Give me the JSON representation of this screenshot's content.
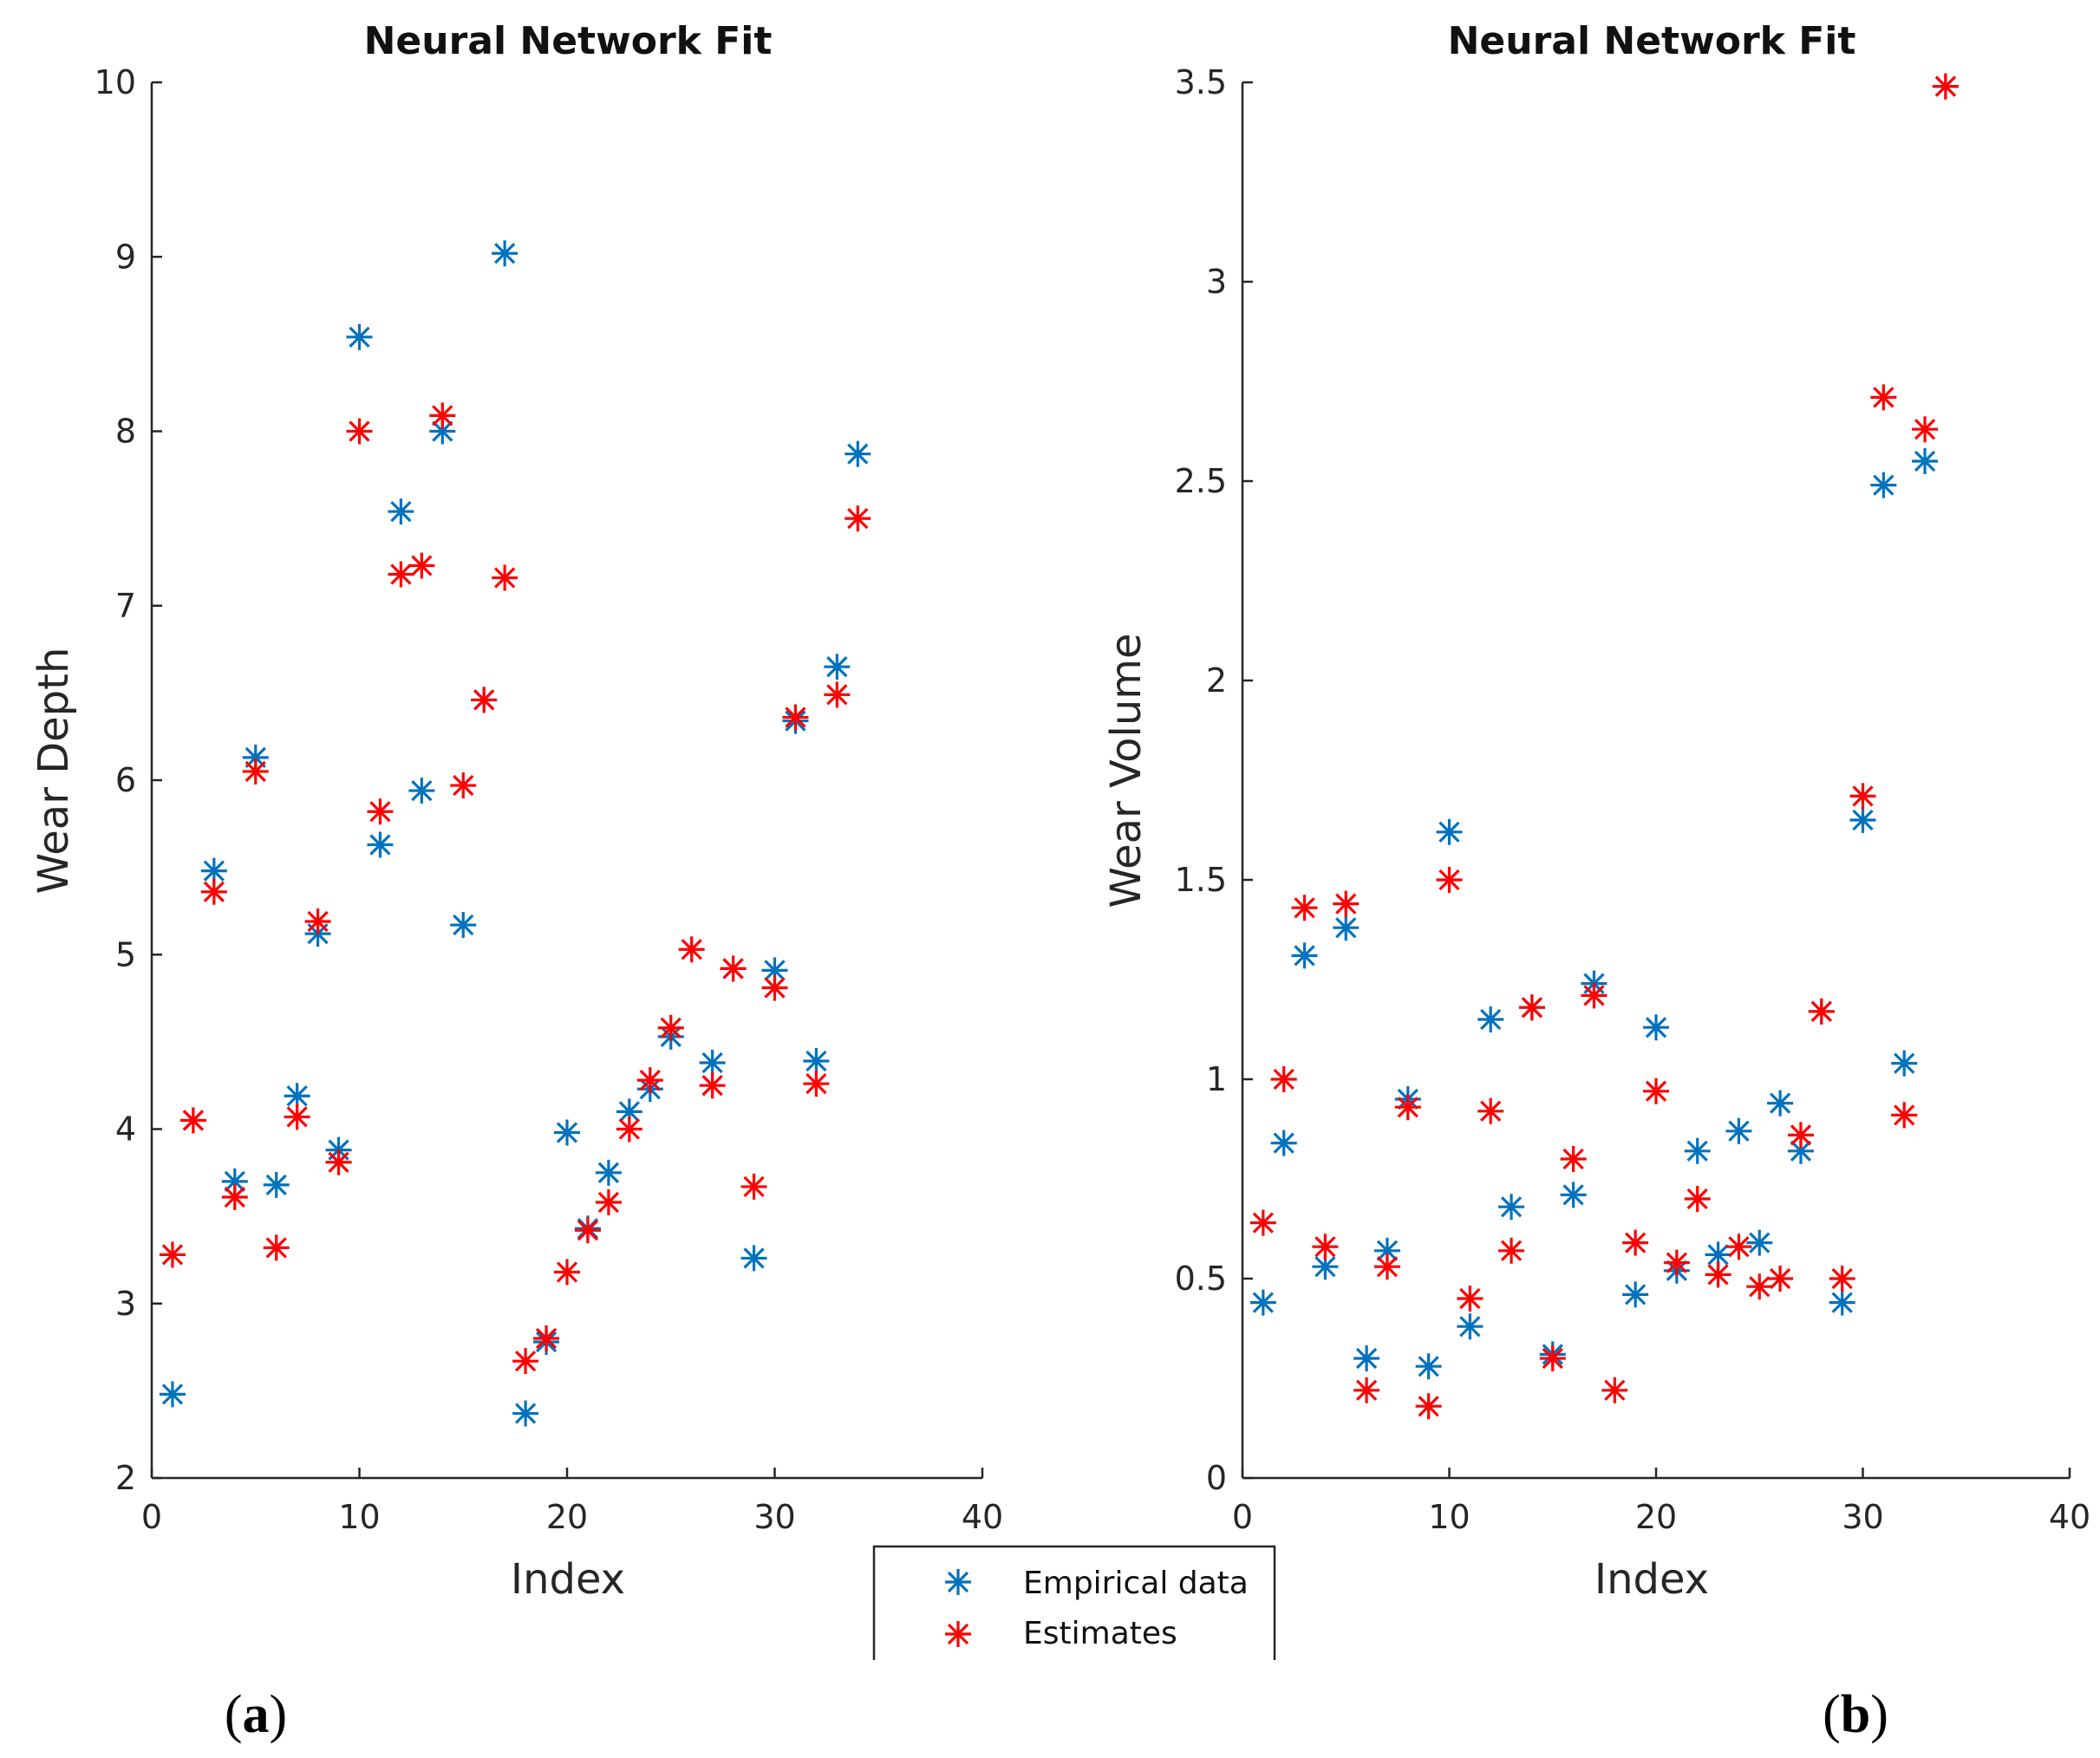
{
  "chart_data": [
    {
      "type": "scatter",
      "panel": "a",
      "title": "Neural Network Fit",
      "xlabel": "Index",
      "ylabel": "Wear Depth",
      "xlim": [
        0,
        40
      ],
      "ylim": [
        2,
        10
      ],
      "xticks": [
        0,
        10,
        20,
        30,
        40
      ],
      "yticks": [
        2,
        3,
        4,
        5,
        6,
        7,
        8,
        9,
        10
      ],
      "x": [
        1,
        2,
        3,
        4,
        5,
        6,
        7,
        8,
        9,
        10,
        11,
        12,
        13,
        14,
        15,
        16,
        17,
        18,
        19,
        20,
        21,
        22,
        23,
        24,
        25,
        26,
        27,
        28,
        29,
        30,
        31,
        32,
        33,
        34
      ],
      "series": [
        {
          "name": "Empirical data",
          "color": "#0072BD",
          "values": [
            2.48,
            4.05,
            5.48,
            3.7,
            6.13,
            3.68,
            4.19,
            5.12,
            3.88,
            8.54,
            5.63,
            7.54,
            5.94,
            8.0,
            5.17,
            6.46,
            9.02,
            2.37,
            2.78,
            3.98,
            3.43,
            3.75,
            4.1,
            4.23,
            4.53,
            null,
            4.38,
            4.92,
            3.26,
            4.91,
            6.34,
            4.39,
            6.65,
            7.87
          ]
        },
        {
          "name": "Estimates",
          "color": "#FF0000",
          "values": [
            3.28,
            4.05,
            5.36,
            3.61,
            6.05,
            3.32,
            4.07,
            5.19,
            3.81,
            8.0,
            5.82,
            7.18,
            7.23,
            8.09,
            5.97,
            6.46,
            7.16,
            2.67,
            2.8,
            3.18,
            3.42,
            3.58,
            4.0,
            4.28,
            4.58,
            5.03,
            4.25,
            4.92,
            3.67,
            4.81,
            6.36,
            4.26,
            6.49,
            7.5
          ]
        }
      ]
    },
    {
      "type": "scatter",
      "panel": "b",
      "title": "Neural Network Fit",
      "xlabel": "Index",
      "ylabel": "Wear Volume",
      "xlim": [
        0,
        40
      ],
      "ylim": [
        0,
        3.5
      ],
      "xticks": [
        0,
        10,
        20,
        30,
        40
      ],
      "yticks": [
        0,
        0.5,
        1,
        1.5,
        2,
        2.5,
        3,
        3.5
      ],
      "x": [
        1,
        2,
        3,
        4,
        5,
        6,
        7,
        8,
        9,
        10,
        11,
        12,
        13,
        14,
        15,
        16,
        17,
        18,
        19,
        20,
        21,
        22,
        23,
        24,
        25,
        26,
        27,
        28,
        29,
        30,
        31,
        32,
        33,
        34
      ],
      "series": [
        {
          "name": "Empirical data",
          "color": "#0072BD",
          "values": [
            0.44,
            0.84,
            1.31,
            0.53,
            1.38,
            0.3,
            0.57,
            0.95,
            0.28,
            1.62,
            0.38,
            1.15,
            0.68,
            1.18,
            0.31,
            0.71,
            1.24,
            null,
            0.46,
            1.13,
            0.52,
            0.82,
            0.56,
            0.87,
            0.59,
            0.94,
            0.82,
            1.17,
            0.44,
            1.65,
            2.49,
            1.04,
            2.55,
            3.49
          ]
        },
        {
          "name": "Estimates",
          "color": "#FF0000",
          "values": [
            0.64,
            1.0,
            1.43,
            0.58,
            1.44,
            0.22,
            0.53,
            0.93,
            0.18,
            1.5,
            0.45,
            0.92,
            0.57,
            1.18,
            0.3,
            0.8,
            1.21,
            0.22,
            0.59,
            0.97,
            0.54,
            0.7,
            0.51,
            0.58,
            0.48,
            0.5,
            0.86,
            1.17,
            0.5,
            1.71,
            2.71,
            0.91,
            2.63,
            3.49
          ]
        }
      ]
    }
  ],
  "legend": {
    "items": [
      {
        "label": "Empirical data",
        "color": "#0072BD"
      },
      {
        "label": "Estimates",
        "color": "#FF0000"
      }
    ]
  },
  "panel_labels": {
    "a": {
      "open": "(",
      "letter": "a",
      "close": ")"
    },
    "b": {
      "open": "(",
      "letter": "b",
      "close": ")"
    }
  }
}
